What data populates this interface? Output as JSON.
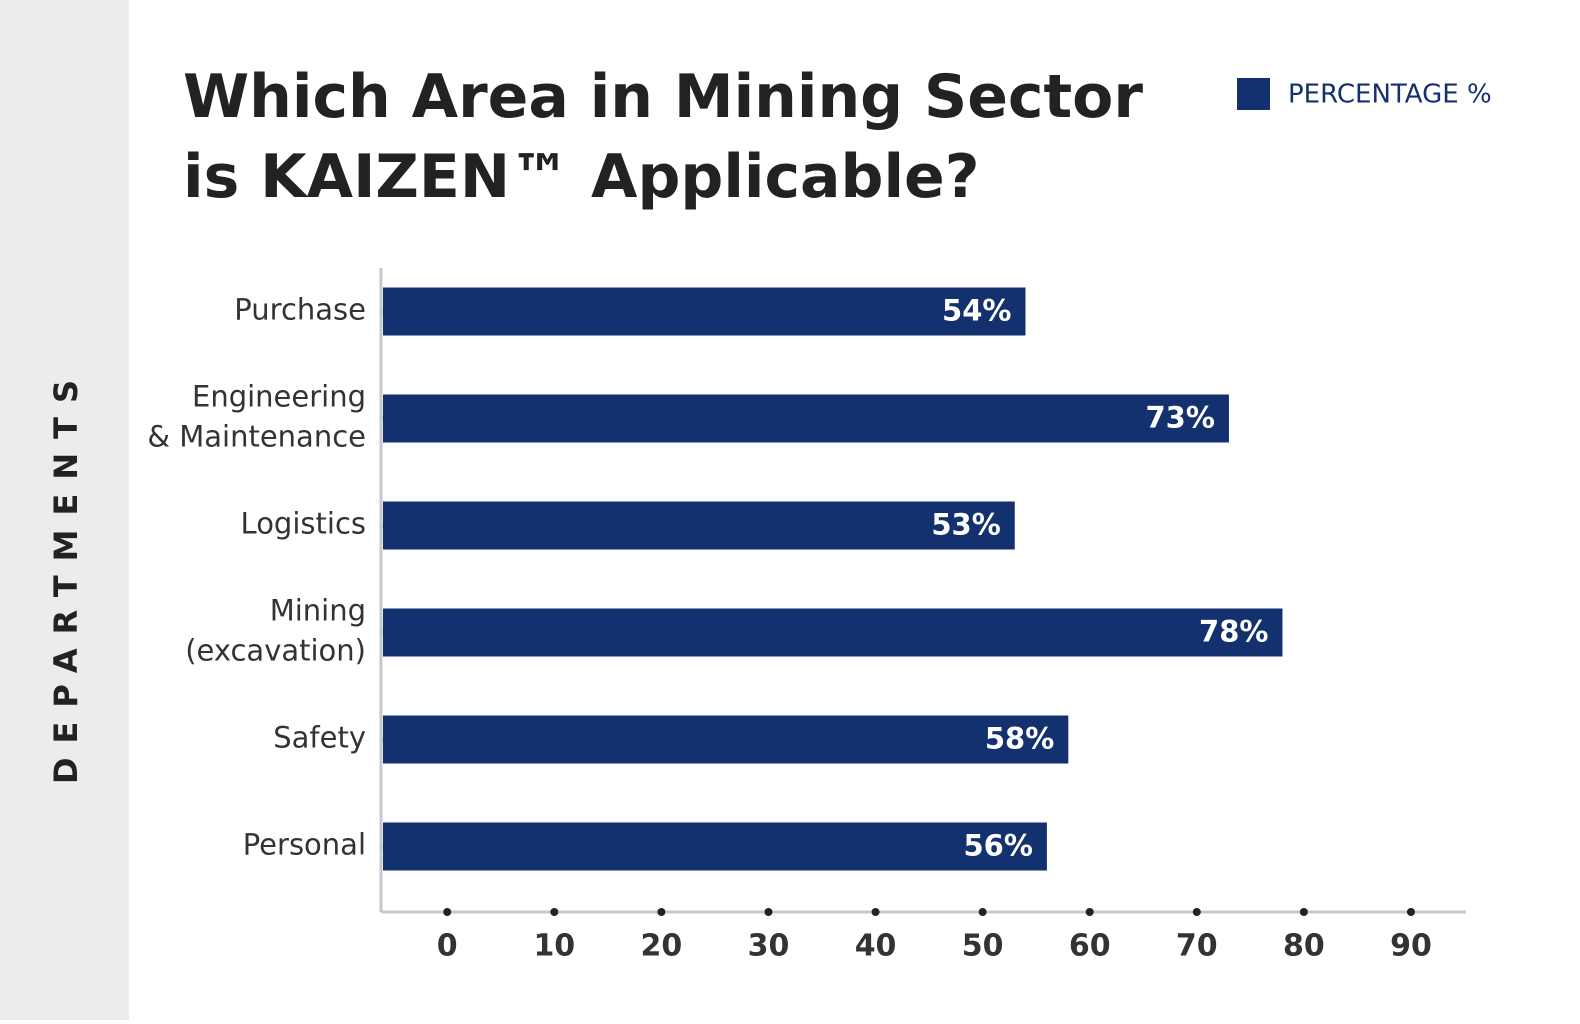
{
  "chart_data": {
    "type": "barh",
    "title": "Which Area in Mining Sector\nis KAIZEN™ Applicable?",
    "y_label": "DEPARTMENTS",
    "categories": [
      "Purchase",
      "Engineering\n& Maintenance",
      "Logistics",
      "Mining\n(excavation)",
      "Safety",
      "Personal"
    ],
    "series": [
      {
        "name": "PERCENTAGE %",
        "color": "#13306f",
        "values": [
          54,
          73,
          53,
          78,
          58,
          56
        ],
        "value_labels": [
          "54%",
          "73%",
          "53%",
          "78%",
          "58%",
          "56%"
        ]
      }
    ],
    "xlim": [
      -6,
      95
    ],
    "xticks": [
      0,
      10,
      20,
      30,
      40,
      50,
      60,
      70,
      80,
      90
    ],
    "legend": "top-right"
  }
}
